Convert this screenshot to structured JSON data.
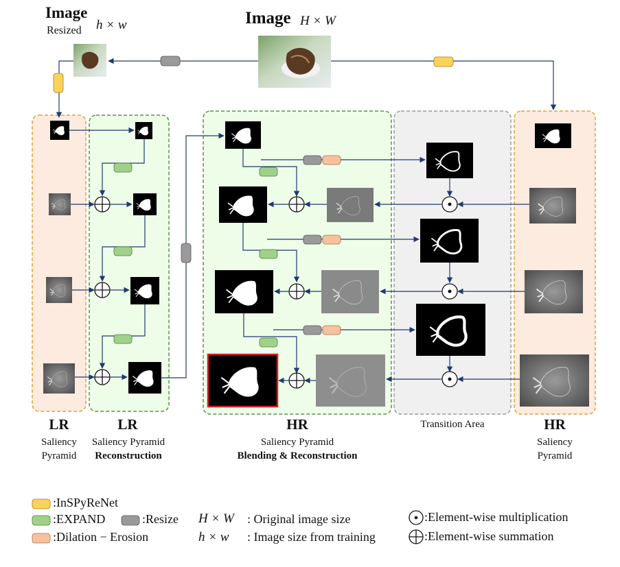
{
  "top": {
    "image_hw_label": "Image",
    "image_hw_math": "H × W",
    "image_resized_label": "Image",
    "image_resized_sub": "Resized",
    "image_resized_math": "h × w"
  },
  "columns": {
    "lr_pyramid": {
      "title": "LR",
      "line1": "Saliency",
      "line2": "Pyramid"
    },
    "lr_recon": {
      "title": "LR",
      "line1": "Saliency Pyramid",
      "line2": "Reconstruction"
    },
    "hr_blend": {
      "title": "HR",
      "line1": "Saliency Pyramid",
      "line2": "Blending & Reconstruction"
    },
    "transition": {
      "line1": "Transition Area"
    },
    "hr_pyramid": {
      "title": "HR",
      "line1": "Saliency",
      "line2": "Pyramid"
    }
  },
  "legend": {
    "inspyrenet": ":InSPyReNet",
    "expand": ":EXPAND",
    "resize": ":Resize",
    "dilation": ":Dilation − Erosion",
    "hw_big_math": "H × W",
    "hw_big_desc": ": Original image size",
    "hw_small_math": "h × w",
    "hw_small_desc": ": Image size from training",
    "mult": ":Element-wise multiplication",
    "sum": ":Element-wise summation"
  },
  "colors": {
    "inspyrenet": "#fbd35a",
    "expand": "#9fd18a",
    "resize": "#9a9a9a",
    "dilation": "#f7c1a0",
    "lr_panel": "#fdebe0",
    "lr_panel_border": "#d7a43a",
    "recon_panel": "#eefde8",
    "recon_panel_border": "#5f8f4a",
    "transition_panel": "#f0f0f0",
    "transition_panel_border": "#9a9a9a",
    "arrow": "#1f3a6e",
    "highlight": "#d42020"
  }
}
